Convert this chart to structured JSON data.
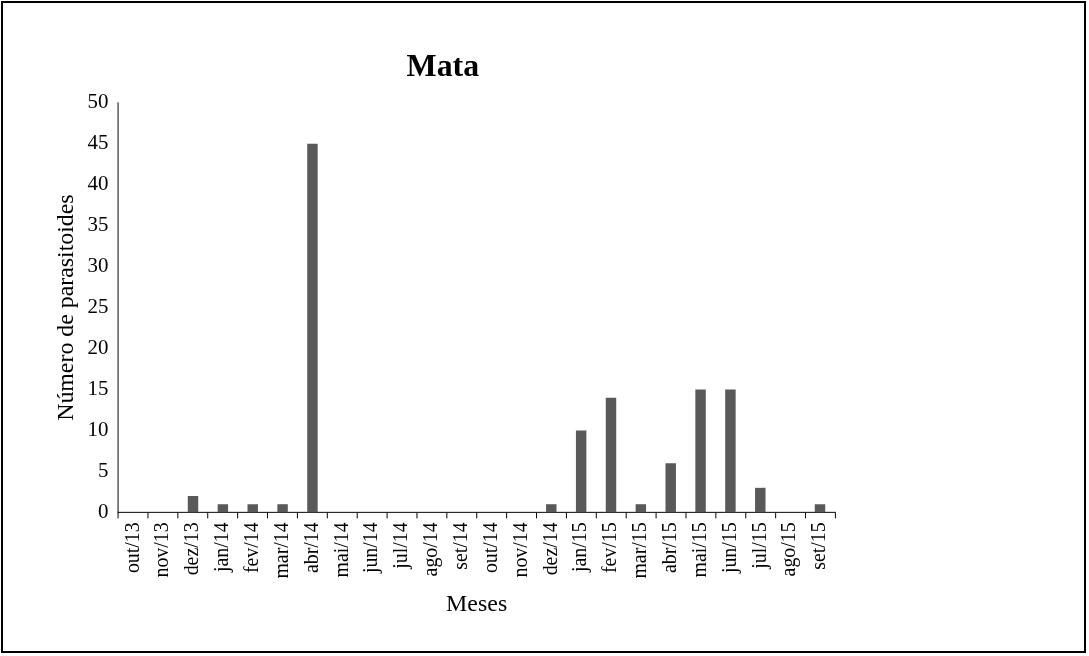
{
  "chart_data": {
    "type": "bar",
    "title": "Mata",
    "xlabel": "Meses",
    "ylabel": "Número de parasitoides",
    "categories": [
      "out/13",
      "nov/13",
      "dez/13",
      "jan/14",
      "fev/14",
      "mar/14",
      "abr/14",
      "mai/14",
      "jun/14",
      "jul/14",
      "ago/14",
      "set/14",
      "out/14",
      "nov/14",
      "dez/14",
      "jan/15",
      "fev/15",
      "mar/15",
      "abr/15",
      "mai/15",
      "jun/15",
      "jul/15",
      "ago/15",
      "set/15"
    ],
    "values": [
      0,
      0,
      2,
      1,
      1,
      1,
      45,
      0,
      0,
      0,
      0,
      0,
      0,
      0,
      1,
      10,
      14,
      1,
      6,
      15,
      15,
      3,
      0,
      1
    ],
    "color": "#595959",
    "ylim": [
      0,
      50
    ],
    "yticks": [
      0,
      5,
      10,
      15,
      20,
      25,
      30,
      35,
      40,
      45,
      50
    ],
    "grid": false,
    "legend": false
  }
}
